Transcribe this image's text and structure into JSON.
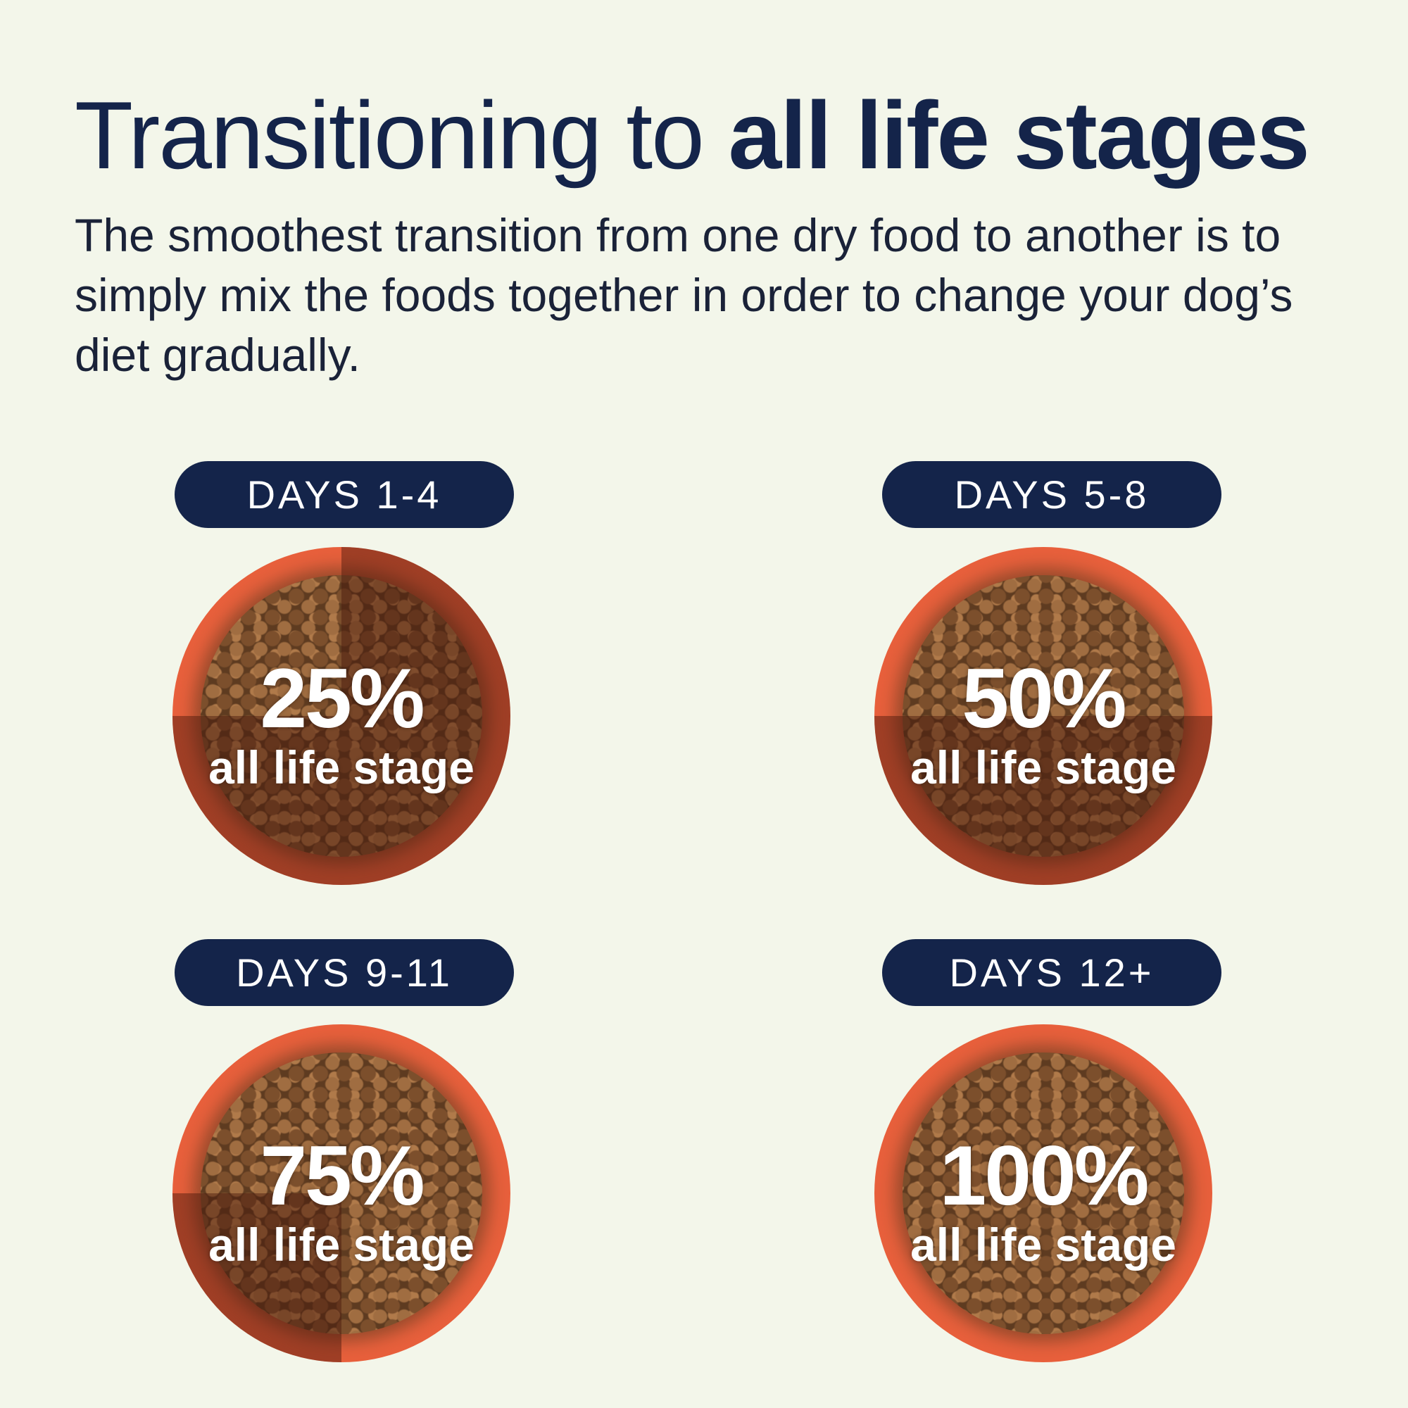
{
  "header": {
    "title_regular": "Transitioning to ",
    "title_bold": "all life stages",
    "subtitle": "The smoothest transition from one dry food to another is to simply mix the foods together in order to change your dog’s diet gradually."
  },
  "colors": {
    "background": "#f3f6ea",
    "navy": "#14244a",
    "bowl": "#e8603c",
    "shade": "#46160a"
  },
  "stages": [
    {
      "days": "DAYS 1-4",
      "percent": "25%",
      "label": "all life stage",
      "new_food_share": 25
    },
    {
      "days": "DAYS 5-8",
      "percent": "50%",
      "label": "all life stage",
      "new_food_share": 50
    },
    {
      "days": "DAYS 9-11",
      "percent": "75%",
      "label": "all life stage",
      "new_food_share": 75
    },
    {
      "days": "DAYS 12+",
      "percent": "100%",
      "label": "all life stage",
      "new_food_share": 100
    }
  ]
}
